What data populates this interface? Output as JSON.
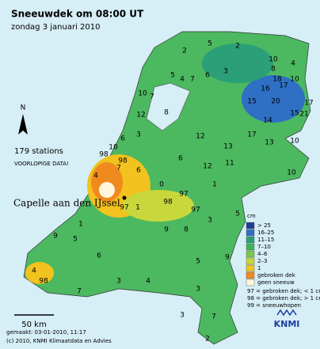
{
  "header": {
    "title": "Sneeuwdek om 08:00 UT",
    "subtitle": "zondag 3 januari 2010"
  },
  "info": {
    "stations": "179 stations",
    "note": "VOORLOPIGE DATA!",
    "north": "N"
  },
  "city": "Capelle aan den IJssel",
  "stations": [
    2,
    5,
    2,
    4,
    5,
    4,
    7,
    6,
    3,
    10,
    8,
    10,
    18,
    16,
    17,
    17,
    15,
    20,
    21,
    15,
    14,
    10,
    7,
    8,
    12,
    3,
    6,
    10,
    12,
    13,
    17,
    13,
    10,
    6,
    11,
    12,
    10,
    98,
    98,
    7,
    6,
    4,
    0,
    97,
    1,
    97,
    1,
    98,
    97,
    5,
    3,
    8,
    9,
    1,
    9,
    5,
    4,
    98,
    7,
    3,
    4,
    6,
    5,
    3,
    3,
    7,
    2,
    9
  ],
  "legend": {
    "unit": "cm",
    "items": [
      {
        "label": "> 25",
        "color": "#1c3f94"
      },
      {
        "label": "16–25",
        "color": "#2f6fc4"
      },
      {
        "label": "11–15",
        "color": "#2a9f78"
      },
      {
        "label": "7–10",
        "color": "#3cb45a"
      },
      {
        "label": "4–6",
        "color": "#7dc84a"
      },
      {
        "label": "2–3",
        "color": "#c8d83c"
      },
      {
        "label": "1",
        "color": "#f2c21e"
      },
      {
        "label": "gebroken dek",
        "color": "#f08a1e"
      },
      {
        "label": "geen sneeuw",
        "color": "#fff6dc"
      }
    ],
    "notes": [
      "97 = gebroken dek; < 1 cm",
      "98 = gebroken dek; > 1 cm",
      "99 = sneeuwhopen"
    ]
  },
  "scale": "50 km",
  "footer": {
    "made": "gemaakt: 03-01-2010, 11:17",
    "copyright": "(c) 2010, KNMI Klimaatdata en Advies"
  },
  "logo": "KNMI"
}
